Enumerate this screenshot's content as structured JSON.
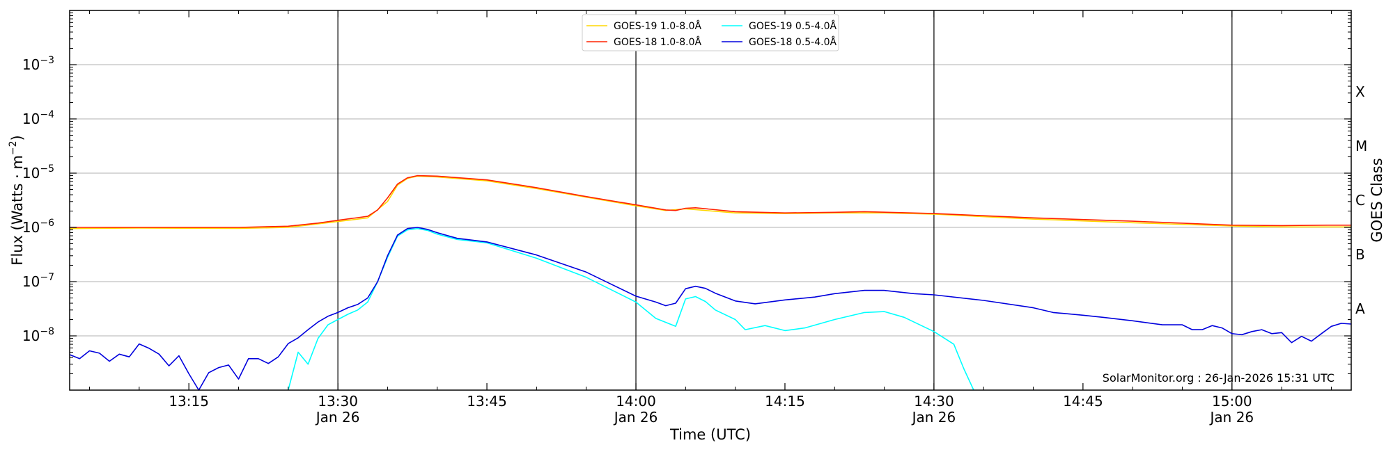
{
  "chart_data": {
    "type": "line",
    "xlabel": "Time (UTC)",
    "ylabel": "Flux (Watts · m",
    "ylabel_superscript": "−2",
    "ylabel_close": ")",
    "y2label": "GOES Class",
    "y_scale": "log",
    "xlim": [
      "13:03",
      "15:12"
    ],
    "ylim": [
      1e-09,
      0.01
    ],
    "grid": "horizontal at decades",
    "legend_position": "top-center",
    "credit": "SolarMonitor.org : 26-Jan-2026 15:31 UTC",
    "x_ticks": [
      {
        "time": "13:15",
        "label": "13:15",
        "sub": ""
      },
      {
        "time": "13:30",
        "label": "13:30",
        "sub": "Jan 26"
      },
      {
        "time": "13:45",
        "label": "13:45",
        "sub": ""
      },
      {
        "time": "14:00",
        "label": "14:00",
        "sub": "Jan 26"
      },
      {
        "time": "14:15",
        "label": "14:15",
        "sub": ""
      },
      {
        "time": "14:30",
        "label": "14:30",
        "sub": "Jan 26"
      },
      {
        "time": "14:45",
        "label": "14:45",
        "sub": ""
      },
      {
        "time": "15:00",
        "label": "15:00",
        "sub": "Jan 26"
      }
    ],
    "vertical_lines": [
      "13:30",
      "14:00",
      "14:30",
      "15:00"
    ],
    "y_ticks": [
      {
        "value": 0.001,
        "base": "10",
        "exp": "−3"
      },
      {
        "value": 0.0001,
        "base": "10",
        "exp": "−4"
      },
      {
        "value": 1e-05,
        "base": "10",
        "exp": "−5"
      },
      {
        "value": 1e-06,
        "base": "10",
        "exp": "−6"
      },
      {
        "value": 1e-07,
        "base": "10",
        "exp": "−7"
      },
      {
        "value": 1e-08,
        "base": "10",
        "exp": "−8"
      }
    ],
    "goes_classes": [
      {
        "label": "X",
        "value": 0.0003162
      },
      {
        "label": "M",
        "value": 3.162e-05
      },
      {
        "label": "C",
        "value": 3.162e-06
      },
      {
        "label": "B",
        "value": 3.162e-07
      },
      {
        "label": "A",
        "value": 3.162e-08
      }
    ],
    "series": [
      {
        "name": "GOES-19 1.0-8.0Å",
        "color": "#ffd700",
        "points": [
          [
            "13:03",
            9.5e-07
          ],
          [
            "13:10",
            9.7e-07
          ],
          [
            "13:20",
            9.6e-07
          ],
          [
            "13:25",
            1e-06
          ],
          [
            "13:30",
            1.28e-06
          ],
          [
            "13:33",
            1.5e-06
          ],
          [
            "13:35",
            3e-06
          ],
          [
            "13:36",
            6e-06
          ],
          [
            "13:37",
            8e-06
          ],
          [
            "13:38",
            8.8e-06
          ],
          [
            "13:40",
            8.5e-06
          ],
          [
            "13:45",
            7.2e-06
          ],
          [
            "13:50",
            5.2e-06
          ],
          [
            "13:55",
            3.6e-06
          ],
          [
            "14:00",
            2.5e-06
          ],
          [
            "14:03",
            2.05e-06
          ],
          [
            "14:05",
            2.2e-06
          ],
          [
            "14:10",
            1.85e-06
          ],
          [
            "14:15",
            1.8e-06
          ],
          [
            "14:20",
            1.85e-06
          ],
          [
            "14:25",
            1.85e-06
          ],
          [
            "14:30",
            1.75e-06
          ],
          [
            "14:40",
            1.42e-06
          ],
          [
            "14:50",
            1.22e-06
          ],
          [
            "15:00",
            1.06e-06
          ],
          [
            "15:05",
            1.02e-06
          ],
          [
            "15:10",
            1.02e-06
          ],
          [
            "15:12",
            1.02e-06
          ]
        ]
      },
      {
        "name": "GOES-18 1.0-8.0Å",
        "color": "#ff2200",
        "points": [
          [
            "13:03",
            1e-06
          ],
          [
            "13:10",
            1e-06
          ],
          [
            "13:20",
            1e-06
          ],
          [
            "13:25",
            1.05e-06
          ],
          [
            "13:28",
            1.2e-06
          ],
          [
            "13:30",
            1.35e-06
          ],
          [
            "13:33",
            1.6e-06
          ],
          [
            "13:34",
            2.1e-06
          ],
          [
            "13:35",
            3.5e-06
          ],
          [
            "13:36",
            6.3e-06
          ],
          [
            "13:37",
            8.2e-06
          ],
          [
            "13:38",
            9e-06
          ],
          [
            "13:40",
            8.8e-06
          ],
          [
            "13:45",
            7.5e-06
          ],
          [
            "13:50",
            5.4e-06
          ],
          [
            "13:55",
            3.7e-06
          ],
          [
            "14:00",
            2.6e-06
          ],
          [
            "14:03",
            2.1e-06
          ],
          [
            "14:04",
            2.05e-06
          ],
          [
            "14:05",
            2.25e-06
          ],
          [
            "14:06",
            2.3e-06
          ],
          [
            "14:10",
            1.95e-06
          ],
          [
            "14:15",
            1.85e-06
          ],
          [
            "14:20",
            1.9e-06
          ],
          [
            "14:23",
            1.95e-06
          ],
          [
            "14:30",
            1.8e-06
          ],
          [
            "14:40",
            1.5e-06
          ],
          [
            "14:50",
            1.3e-06
          ],
          [
            "15:00",
            1.1e-06
          ],
          [
            "15:05",
            1.08e-06
          ],
          [
            "15:10",
            1.1e-06
          ],
          [
            "15:12",
            1.1e-06
          ]
        ]
      },
      {
        "name": "GOES-19 0.5-4.0Å",
        "color": "#00ffff",
        "points": [
          [
            "13:25",
            1e-09
          ],
          [
            "13:26",
            5e-09
          ],
          [
            "13:27",
            3e-09
          ],
          [
            "13:28",
            9e-09
          ],
          [
            "13:29",
            1.6e-08
          ],
          [
            "13:30",
            2e-08
          ],
          [
            "13:31",
            2.5e-08
          ],
          [
            "13:32",
            3e-08
          ],
          [
            "13:33",
            4.2e-08
          ],
          [
            "13:34",
            1e-07
          ],
          [
            "13:35",
            2.8e-07
          ],
          [
            "13:36",
            6.9e-07
          ],
          [
            "13:37",
            9e-07
          ],
          [
            "13:38",
            9.5e-07
          ],
          [
            "13:39",
            8.8e-07
          ],
          [
            "13:40",
            7.5e-07
          ],
          [
            "13:42",
            6e-07
          ],
          [
            "13:45",
            5.2e-07
          ],
          [
            "13:50",
            2.7e-07
          ],
          [
            "13:55",
            1.2e-07
          ],
          [
            "14:00",
            4.2e-08
          ],
          [
            "14:02",
            2.1e-08
          ],
          [
            "14:04",
            1.5e-08
          ],
          [
            "14:05",
            4.8e-08
          ],
          [
            "14:06",
            5.3e-08
          ],
          [
            "14:07",
            4.3e-08
          ],
          [
            "14:08",
            3e-08
          ],
          [
            "14:10",
            2e-08
          ],
          [
            "14:11",
            1.3e-08
          ],
          [
            "14:13",
            1.55e-08
          ],
          [
            "14:15",
            1.25e-08
          ],
          [
            "14:17",
            1.4e-08
          ],
          [
            "14:20",
            2e-08
          ],
          [
            "14:23",
            2.7e-08
          ],
          [
            "14:25",
            2.8e-08
          ],
          [
            "14:27",
            2.2e-08
          ],
          [
            "14:30",
            1.2e-08
          ],
          [
            "14:32",
            7e-09
          ],
          [
            "14:33",
            2.5e-09
          ],
          [
            "14:34",
            1e-09
          ]
        ]
      },
      {
        "name": "GOES-18 0.5-4.0Å",
        "color": "#0000dd",
        "points": [
          [
            "13:03",
            4.5e-09
          ],
          [
            "13:04",
            3.8e-09
          ],
          [
            "13:05",
            5.3e-09
          ],
          [
            "13:06",
            4.8e-09
          ],
          [
            "13:07",
            3.4e-09
          ],
          [
            "13:08",
            4.6e-09
          ],
          [
            "13:09",
            4.1e-09
          ],
          [
            "13:10",
            7.1e-09
          ],
          [
            "13:11",
            5.9e-09
          ],
          [
            "13:12",
            4.6e-09
          ],
          [
            "13:13",
            2.8e-09
          ],
          [
            "13:14",
            4.3e-09
          ],
          [
            "13:15",
            2e-09
          ],
          [
            "13:16",
            1e-09
          ],
          [
            "13:17",
            2.1e-09
          ],
          [
            "13:18",
            2.6e-09
          ],
          [
            "13:19",
            2.9e-09
          ],
          [
            "13:20",
            1.6e-09
          ],
          [
            "13:21",
            3.8e-09
          ],
          [
            "13:22",
            3.8e-09
          ],
          [
            "13:23",
            3.1e-09
          ],
          [
            "13:24",
            4.1e-09
          ],
          [
            "13:25",
            7.2e-09
          ],
          [
            "13:26",
            9.2e-09
          ],
          [
            "13:27",
            1.3e-08
          ],
          [
            "13:28",
            1.8e-08
          ],
          [
            "13:29",
            2.3e-08
          ],
          [
            "13:30",
            2.7e-08
          ],
          [
            "13:31",
            3.3e-08
          ],
          [
            "13:32",
            3.8e-08
          ],
          [
            "13:33",
            5e-08
          ],
          [
            "13:34",
            1e-07
          ],
          [
            "13:35",
            3e-07
          ],
          [
            "13:36",
            7.2e-07
          ],
          [
            "13:37",
            9.5e-07
          ],
          [
            "13:38",
            1e-06
          ],
          [
            "13:39",
            9.2e-07
          ],
          [
            "13:40",
            8e-07
          ],
          [
            "13:42",
            6.3e-07
          ],
          [
            "13:45",
            5.4e-07
          ],
          [
            "13:50",
            3.1e-07
          ],
          [
            "13:55",
            1.5e-07
          ],
          [
            "14:00",
            5.4e-08
          ],
          [
            "14:02",
            4.2e-08
          ],
          [
            "14:03",
            3.6e-08
          ],
          [
            "14:04",
            4e-08
          ],
          [
            "14:05",
            7.4e-08
          ],
          [
            "14:06",
            8.2e-08
          ],
          [
            "14:07",
            7.5e-08
          ],
          [
            "14:08",
            6.1e-08
          ],
          [
            "14:10",
            4.4e-08
          ],
          [
            "14:12",
            3.9e-08
          ],
          [
            "14:15",
            4.6e-08
          ],
          [
            "14:18",
            5.2e-08
          ],
          [
            "14:20",
            6e-08
          ],
          [
            "14:23",
            6.9e-08
          ],
          [
            "14:25",
            6.9e-08
          ],
          [
            "14:28",
            6e-08
          ],
          [
            "14:30",
            5.7e-08
          ],
          [
            "14:35",
            4.5e-08
          ],
          [
            "14:40",
            3.3e-08
          ],
          [
            "14:42",
            2.7e-08
          ],
          [
            "14:45",
            2.4e-08
          ],
          [
            "14:47",
            2.2e-08
          ],
          [
            "14:50",
            1.9e-08
          ],
          [
            "14:53",
            1.6e-08
          ],
          [
            "14:55",
            1.6e-08
          ],
          [
            "14:56",
            1.3e-08
          ],
          [
            "14:57",
            1.3e-08
          ],
          [
            "14:58",
            1.55e-08
          ],
          [
            "14:59",
            1.4e-08
          ],
          [
            "15:00",
            1.1e-08
          ],
          [
            "15:01",
            1.05e-08
          ],
          [
            "15:02",
            1.2e-08
          ],
          [
            "15:03",
            1.3e-08
          ],
          [
            "15:04",
            1.1e-08
          ],
          [
            "15:05",
            1.15e-08
          ],
          [
            "15:06",
            7.5e-09
          ],
          [
            "15:07",
            9.8e-09
          ],
          [
            "15:08",
            8e-09
          ],
          [
            "15:09",
            1.1e-08
          ],
          [
            "15:10",
            1.5e-08
          ],
          [
            "15:11",
            1.7e-08
          ],
          [
            "15:12",
            1.65e-08
          ]
        ]
      }
    ]
  }
}
